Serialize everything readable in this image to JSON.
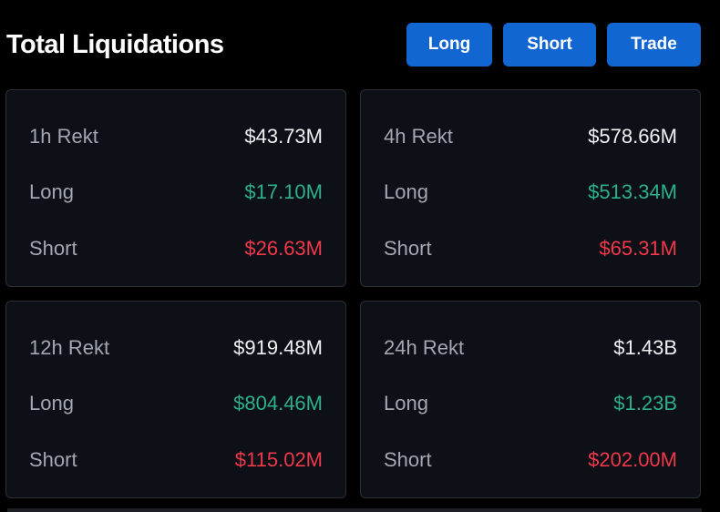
{
  "header": {
    "title": "Total Liquidations",
    "buttons": {
      "long": "Long",
      "short": "Short",
      "trade": "Trade"
    }
  },
  "colors": {
    "accent_button": "#1166d1",
    "long_value": "#2db08b",
    "short_value": "#f0384b",
    "background": "#000000",
    "card_background": "#0d1016"
  },
  "cards": [
    {
      "period": "1h Rekt",
      "total": "$43.73M",
      "long_label": "Long",
      "long_value": "$17.10M",
      "short_label": "Short",
      "short_value": "$26.63M"
    },
    {
      "period": "4h Rekt",
      "total": "$578.66M",
      "long_label": "Long",
      "long_value": "$513.34M",
      "short_label": "Short",
      "short_value": "$65.31M"
    },
    {
      "period": "12h Rekt",
      "total": "$919.48M",
      "long_label": "Long",
      "long_value": "$804.46M",
      "short_label": "Short",
      "short_value": "$115.02M"
    },
    {
      "period": "24h Rekt",
      "total": "$1.43B",
      "long_label": "Long",
      "long_value": "$1.23B",
      "short_label": "Short",
      "short_value": "$202.00M"
    }
  ]
}
